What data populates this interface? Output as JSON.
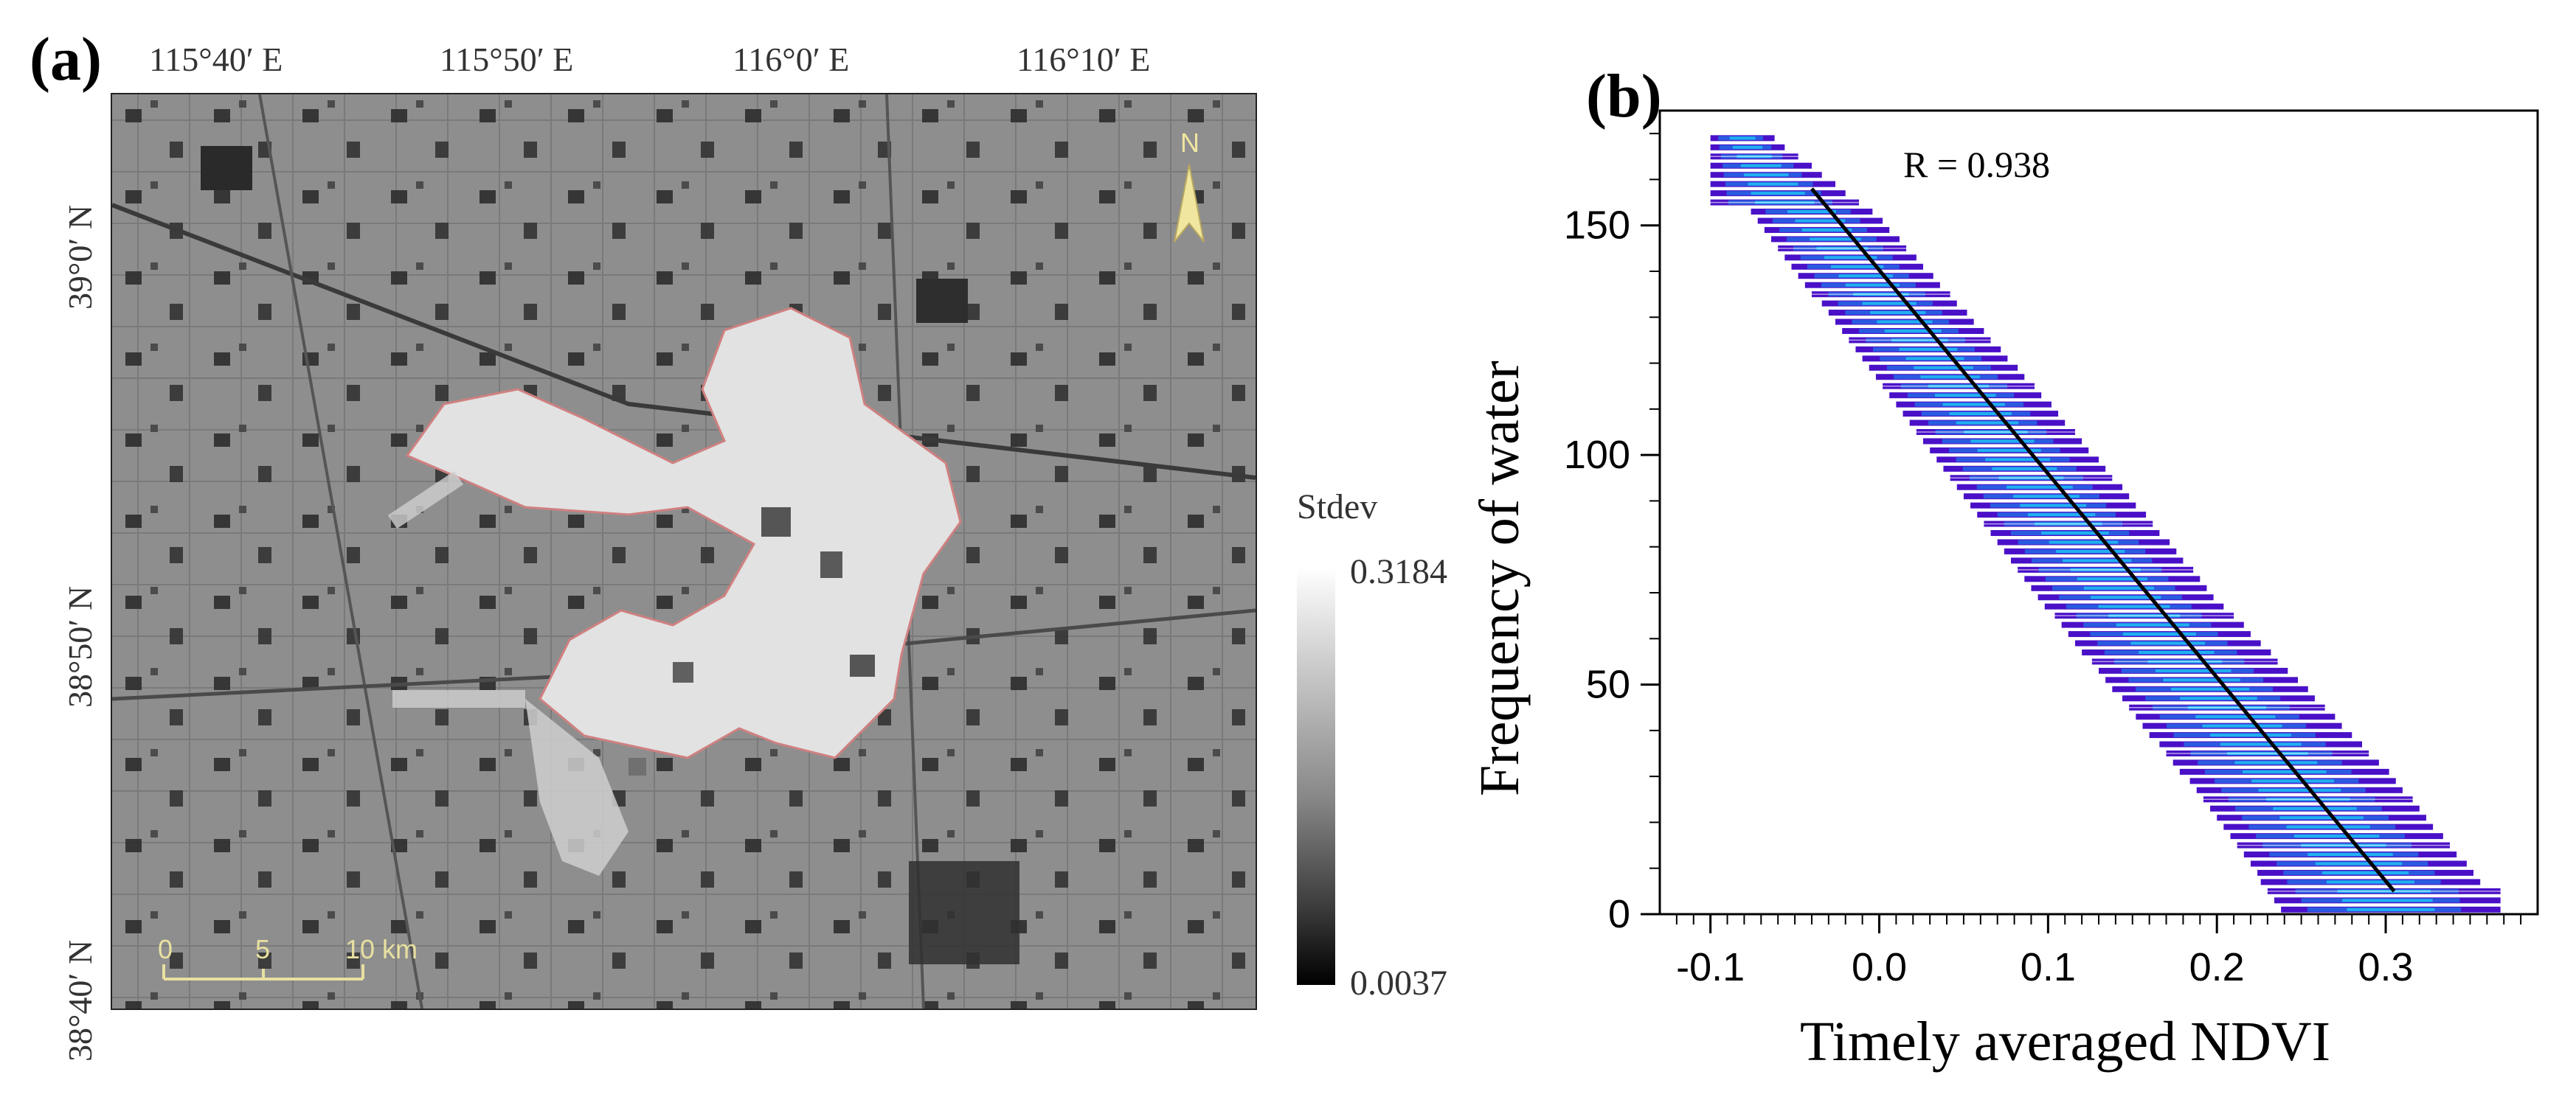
{
  "panel_a": {
    "label": "(a)",
    "top_ticks": [
      "115°40′ E",
      "115°50′ E",
      "116°0′ E",
      "116°10′ E"
    ],
    "left_ticks": [
      "39°0′ N",
      "38°50′ N",
      "38°40′ N"
    ],
    "north_label": "N",
    "scale_bar": {
      "labels": [
        "0",
        "5",
        "10 km"
      ]
    },
    "colorbar": {
      "title": "Stdev",
      "max_label": "0.3184",
      "min_label": "0.0037"
    },
    "colors": {
      "background": "#8c8c8c",
      "lake": "#e4e4e4",
      "lake_outline": "#d08080",
      "scale": "#e8e0a0"
    }
  },
  "panel_b": {
    "label": "(b)",
    "annotation": "R = 0.938",
    "chart_data": {
      "type": "scatter",
      "title": "",
      "xlabel": "Timely averaged NDVI",
      "ylabel": "Frequency of water",
      "xlim": [
        -0.13,
        0.39
      ],
      "ylim": [
        0,
        175
      ],
      "xticks": [
        "-0.1",
        "0.0",
        "0.1",
        "0.2",
        "0.3"
      ],
      "xtick_values": [
        -0.1,
        0.0,
        0.1,
        0.2,
        0.3
      ],
      "yticks": [
        "0",
        "50",
        "100",
        "150"
      ],
      "ytick_values": [
        0,
        50,
        100,
        150
      ],
      "density_band_upper": [
        [
          -0.08,
          170
        ],
        [
          0.0,
          148
        ],
        [
          0.1,
          108
        ],
        [
          0.2,
          65
        ],
        [
          0.3,
          28
        ],
        [
          0.36,
          2
        ]
      ],
      "density_band_lower": [
        [
          -0.08,
          168
        ],
        [
          0.0,
          130
        ],
        [
          0.1,
          80
        ],
        [
          0.2,
          35
        ],
        [
          0.25,
          8
        ],
        [
          0.12,
          2
        ]
      ],
      "regression_line": {
        "x": [
          -0.04,
          0.305
        ],
        "y": [
          158,
          5
        ]
      },
      "colors": [
        "#4a10c8",
        "#2a5ae0",
        "#20b0f0",
        "#60e0f8"
      ]
    }
  }
}
